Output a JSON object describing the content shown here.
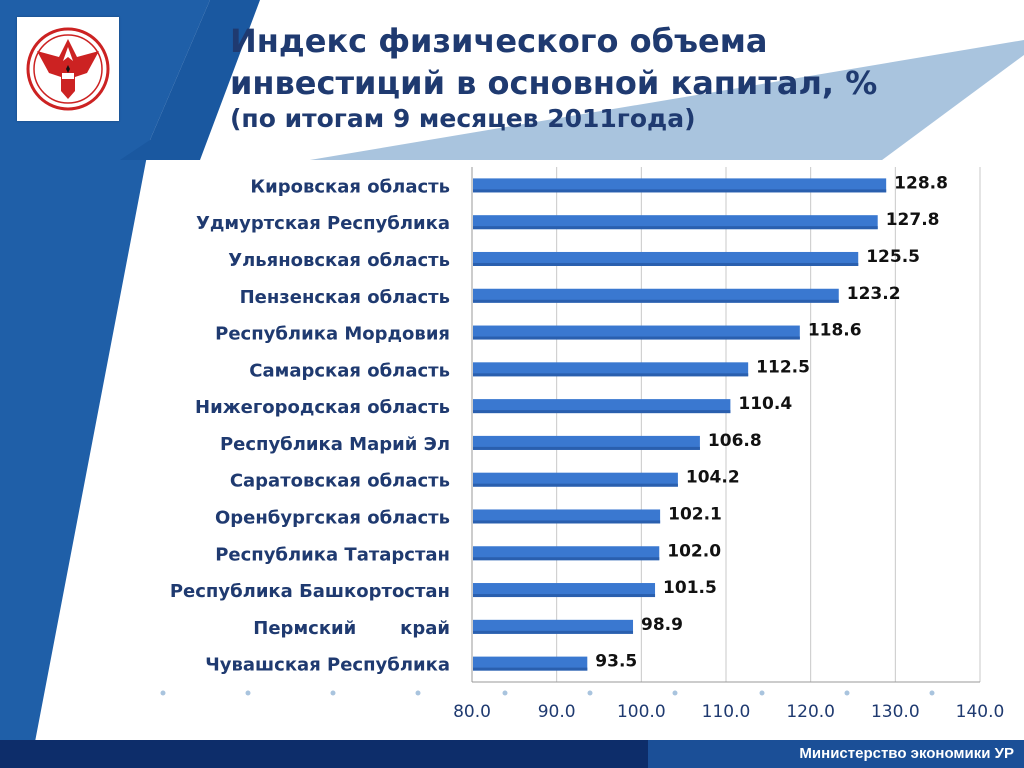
{
  "header": {
    "title_line1": "Индекс физического объема",
    "title_line2": "инвестиций в основной капитал, %",
    "subtitle": "(по итогам 9 месяцев 2011года)"
  },
  "footer": {
    "text": "Министерство экономики УР"
  },
  "colors": {
    "bar": "#3a78d0",
    "bar_shade": "#2a5fae",
    "title": "#1f3a70",
    "category_label": "#1f3a70",
    "value_label": "#111111",
    "tick_label": "#1f3a70",
    "grid": "#c8c8c8",
    "header_blue": "#1f5fa8",
    "header_light": "#a9c4de",
    "footer": "#0d2d6a"
  },
  "logo": {
    "icon": "udmurtia-coat-of-arms-icon"
  },
  "chart_data": {
    "type": "bar",
    "orientation": "horizontal",
    "categories": [
      "Кировская область",
      "Удмуртская Республика",
      "Ульяновская область",
      "Пензенская область",
      "Республика Мордовия",
      "Самарская область",
      "Нижегородская область",
      "Республика Марий Эл",
      "Саратовская область",
      "Оренбургская область",
      "Республика Татарстан",
      "Республика Башкортостан",
      "Пермский       край",
      "Чувашская Республика"
    ],
    "values": [
      128.8,
      127.8,
      125.5,
      123.2,
      118.6,
      112.5,
      110.4,
      106.8,
      104.2,
      102.1,
      102.0,
      101.5,
      98.9,
      93.5
    ],
    "value_labels": [
      "128.8",
      "127.8",
      "125.5",
      "123.2",
      "118.6",
      "112.5",
      "110.4",
      "106.8",
      "104.2",
      "102.1",
      "102.0",
      "101.5",
      "98.9",
      "93.5"
    ],
    "xlim": [
      80,
      140
    ],
    "xticks": [
      80,
      90,
      100,
      110,
      120,
      130,
      140
    ],
    "xtick_labels": [
      "80.0",
      "90.0",
      "100.0",
      "110.0",
      "120.0",
      "130.0",
      "140.0"
    ],
    "grid": "vertical",
    "legend": "none"
  }
}
